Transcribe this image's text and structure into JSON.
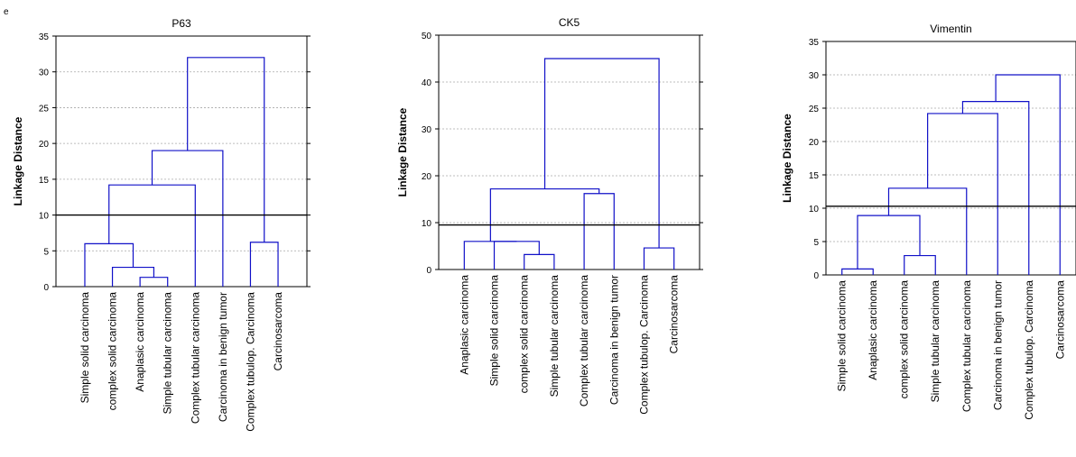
{
  "panel_label": "e",
  "chart_data": [
    {
      "type": "dendrogram",
      "title": "P63",
      "ylabel": "Linkage Distance",
      "ylim": [
        0,
        35
      ],
      "yticks": [
        0,
        5,
        10,
        15,
        20,
        25,
        30,
        35
      ],
      "grid": true,
      "cut_height": 10,
      "leaves": [
        "Simple solid carcinoma",
        "complex solid carcinoma",
        "Anaplasic carcinoma",
        "Simple tubular carcinoma",
        "Complex tubular carcinoma",
        "Carcinoma in benign tumor",
        "Complex tubulop. Carcinoma",
        "Carcinosarcoma"
      ],
      "merges": [
        {
          "a": "L3",
          "b": "L4",
          "height": 1.3
        },
        {
          "a": "L2",
          "b": "N1",
          "height": 2.7
        },
        {
          "a": "L1",
          "b": "N2",
          "height": 6.0
        },
        {
          "a": "L7",
          "b": "L8",
          "height": 6.2
        },
        {
          "a": "N3",
          "b": "L5",
          "height": 14.2
        },
        {
          "a": "N5",
          "b": "L6",
          "height": 19.0
        },
        {
          "a": "N6",
          "b": "N4",
          "height": 32.0
        }
      ]
    },
    {
      "type": "dendrogram",
      "title": "CK5",
      "ylabel": "Linkage Distance",
      "ylim": [
        0,
        50
      ],
      "yticks": [
        0,
        10,
        20,
        30,
        40,
        50
      ],
      "grid": true,
      "cut_height": 9.5,
      "leaves": [
        "Anaplasic carcinoma",
        "Simple solid carcinoma",
        "complex solid carcinoma",
        "Simple tubular carcinoma",
        "Complex tubular carcinoma",
        "Carcinoma in benign tumor",
        "Complex tubulop. Carcinoma",
        "Carcinosarcoma"
      ],
      "merges": [
        {
          "a": "L3",
          "b": "L4",
          "height": 3.2
        },
        {
          "a": "L7",
          "b": "L8",
          "height": 4.6
        },
        {
          "a": "L2",
          "b": "N1",
          "height": 6.0
        },
        {
          "a": "L1",
          "b": "N3",
          "height": 6.0
        },
        {
          "a": "L5",
          "b": "L6",
          "height": 16.2
        },
        {
          "a": "N4",
          "b": "N5",
          "height": 17.2
        },
        {
          "a": "N6",
          "b": "N2",
          "height": 45.0
        }
      ]
    },
    {
      "type": "dendrogram",
      "title": "Vimentin",
      "ylabel": "Linkage Distance",
      "ylim": [
        0,
        35
      ],
      "yticks": [
        0,
        5,
        10,
        15,
        20,
        25,
        30,
        35
      ],
      "grid": true,
      "cut_height": 10.3,
      "leaves": [
        "Simple solid carcinoma",
        "Anaplasic carcinoma",
        "complex solid carcinoma",
        "Simple tubular carcinoma",
        "Complex tubular carcinoma",
        "Carcinoma in benign tumor",
        "Complex tubulop. Carcinoma",
        "Carcinosarcoma"
      ],
      "merges": [
        {
          "a": "L1",
          "b": "L2",
          "height": 0.9
        },
        {
          "a": "L3",
          "b": "L4",
          "height": 2.9
        },
        {
          "a": "N1",
          "b": "N2",
          "height": 8.9
        },
        {
          "a": "N3",
          "b": "L5",
          "height": 13.0
        },
        {
          "a": "N4",
          "b": "L6",
          "height": 24.2
        },
        {
          "a": "N5",
          "b": "L7",
          "height": 26.0
        },
        {
          "a": "N6",
          "b": "L8",
          "height": 30.0
        }
      ]
    }
  ]
}
